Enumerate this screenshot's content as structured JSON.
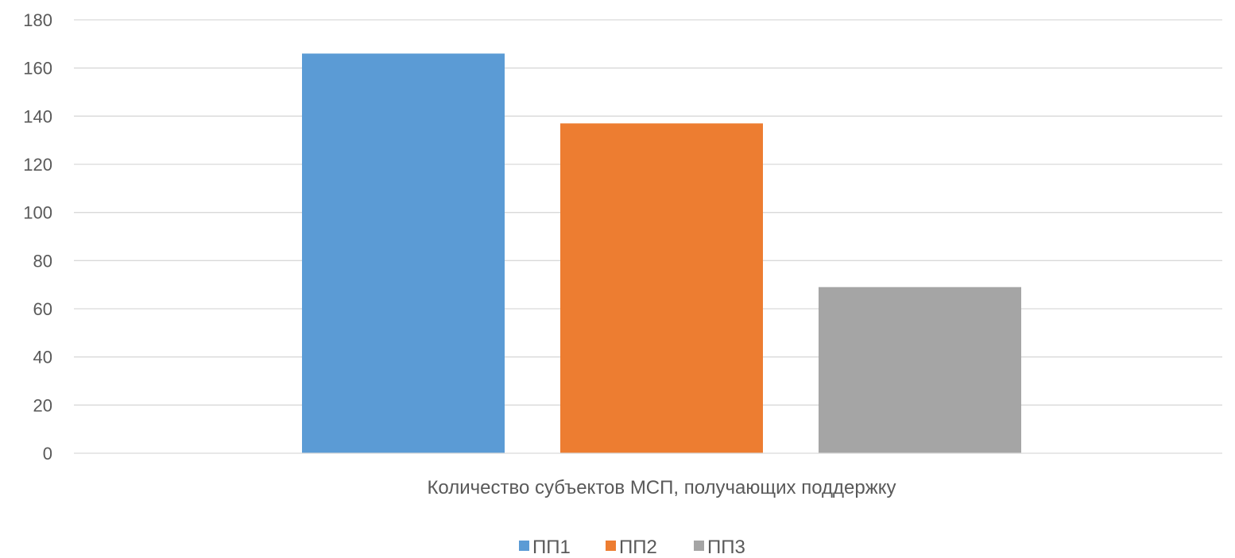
{
  "chart_data": {
    "type": "bar",
    "categories": [
      "Количество субъектов МСП, получающих поддержку"
    ],
    "series": [
      {
        "name": "ПП1",
        "values": [
          166
        ],
        "color": "#5b9bd5"
      },
      {
        "name": "ПП2",
        "values": [
          137
        ],
        "color": "#ed7d31"
      },
      {
        "name": "ПП3",
        "values": [
          69
        ],
        "color": "#a5a5a5"
      }
    ],
    "ylim": [
      0,
      180
    ],
    "yticks": [
      0,
      20,
      40,
      60,
      80,
      100,
      120,
      140,
      160,
      180
    ],
    "grid": true,
    "legend_position": "bottom-center",
    "title": "",
    "xlabel": "",
    "ylabel": ""
  }
}
